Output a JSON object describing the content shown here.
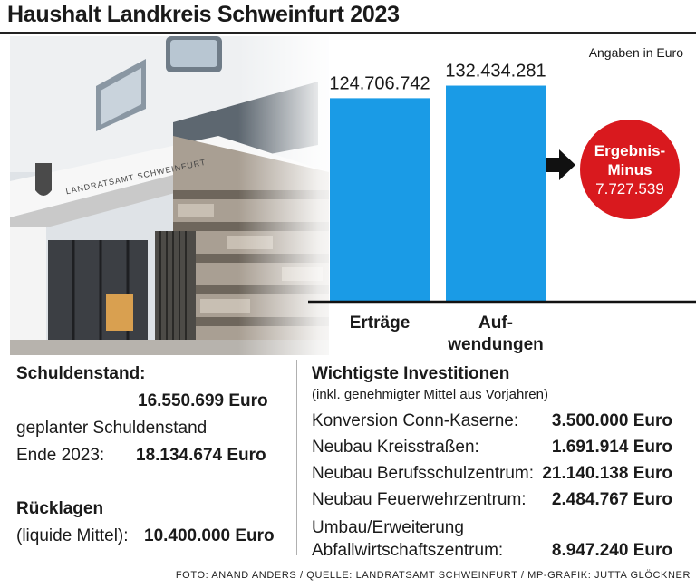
{
  "title": "Haushalt Landkreis Schweinfurt 2023",
  "unit_note": "Angaben in Euro",
  "chart_data": {
    "type": "bar",
    "categories": [
      "Erträge",
      "Aufwendungen"
    ],
    "category_lines": [
      [
        "Erträge"
      ],
      [
        "Auf-",
        "wendungen"
      ]
    ],
    "values": [
      124706742,
      132434281
    ],
    "value_labels": [
      "124.706.742",
      "132.434.281"
    ],
    "ylim": [
      0,
      150000000
    ],
    "bar_color": "#1a9be6",
    "grid": false
  },
  "result": {
    "label": "Ergebnis-Minus",
    "value": "7.727.539",
    "color": "#d9191e"
  },
  "left": {
    "debt_heading": "Schuldenstand:",
    "debt_value": "16.550.699 Euro",
    "planned_line1": "geplanter Schuldenstand",
    "planned_label": "Ende 2023:",
    "planned_value": "18.134.674 Euro",
    "reserves_heading": "Rücklagen",
    "reserves_label": "(liquide Mittel):",
    "reserves_value": "10.400.000 Euro"
  },
  "investments": {
    "heading": "Wichtigste Investitionen",
    "subheading": "(inkl. genehmigter Mittel aus Vorjahren)",
    "rows": [
      {
        "name": "Konversion Conn-Kaserne:",
        "amount": "3.500.000 Euro"
      },
      {
        "name": "Neubau Kreisstraßen:",
        "amount": "1.691.914 Euro"
      },
      {
        "name": "Neubau Berufsschulzentrum:",
        "amount": "21.140.138 Euro"
      },
      {
        "name": "Neubau Feuerwehrzentrum:",
        "amount": "2.484.767 Euro"
      }
    ],
    "last_row_line1": "Umbau/Erweiterung",
    "last_row_name": "Abfallwirtschaftszentrum:",
    "last_row_amount": "8.947.240 Euro"
  },
  "photo": {
    "sign_text": "LANDRATSAMT SCHWEINFURT",
    "icons": [
      "eagle-crest-icon"
    ]
  },
  "credit": "FOTO: ANAND ANDERS / QUELLE: LANDRATSAMT SCHWEINFURT / MP-GRAFIK: JUTTA GLÖCKNER"
}
